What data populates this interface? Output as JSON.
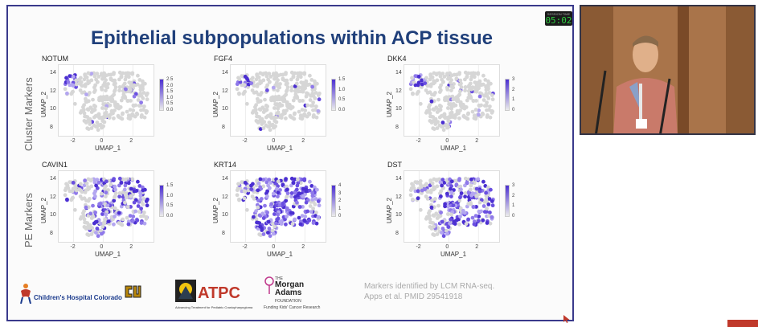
{
  "slide": {
    "title": "Epithelial subpopulations within ACP tissue",
    "timer": {
      "label": "SESSION TIME",
      "value": "05:02"
    },
    "row_labels": [
      "Cluster Markers",
      "PE Markers"
    ],
    "logos": {
      "childrens": "Children's Hospital Colorado",
      "atpc": "ATPC",
      "atpc_sub": "Advancing Treatment for Pediatric Craniopharyngioma",
      "morgan_the": "THE",
      "morgan_name": "Morgan Adams",
      "morgan_foundation": "FOUNDATION",
      "morgan_tagline": "Funding Kids' Cancer Research"
    },
    "footnote": [
      "Markers identified by LCM RNA-seq.",
      "Apps et al. PMID 29541918"
    ]
  },
  "chart_data": [
    {
      "type": "scatter",
      "title": "NOTUM",
      "xlabel": "UMAP_1",
      "ylabel": "UMAP_2",
      "xticks": [
        "-2",
        "0",
        "2"
      ],
      "yticks": [
        "14",
        "12",
        "10",
        "8"
      ],
      "legend_ticks": [
        "2.5",
        "2.0",
        "1.5",
        "1.0",
        "0.5",
        "0.0"
      ],
      "xlim": [
        -3,
        3.5
      ],
      "ylim": [
        7,
        15
      ],
      "expression": "low"
    },
    {
      "type": "scatter",
      "title": "FGF4",
      "xlabel": "UMAP_1",
      "ylabel": "UMAP_2",
      "xticks": [
        "-2",
        "0",
        "2"
      ],
      "yticks": [
        "14",
        "12",
        "10",
        "8"
      ],
      "legend_ticks": [
        "1.5",
        "1.0",
        "0.5",
        "0.0"
      ],
      "xlim": [
        -3,
        3.5
      ],
      "ylim": [
        7,
        15
      ],
      "expression": "low"
    },
    {
      "type": "scatter",
      "title": "DKK4",
      "xlabel": "UMAP_1",
      "ylabel": "UMAP_2",
      "xticks": [
        "-2",
        "0",
        "2"
      ],
      "yticks": [
        "14",
        "12",
        "10",
        "8"
      ],
      "legend_ticks": [
        "3",
        "2",
        "1",
        "0"
      ],
      "xlim": [
        -3,
        3.5
      ],
      "ylim": [
        7,
        15
      ],
      "expression": "low"
    },
    {
      "type": "scatter",
      "title": "CAVIN1",
      "xlabel": "UMAP_1",
      "ylabel": "UMAP_2",
      "xticks": [
        "-2",
        "0",
        "2"
      ],
      "yticks": [
        "14",
        "12",
        "10",
        "8"
      ],
      "legend_ticks": [
        "1.5",
        "1.0",
        "0.5",
        "0.0"
      ],
      "xlim": [
        -3,
        3.5
      ],
      "ylim": [
        7,
        15
      ],
      "expression": "medium"
    },
    {
      "type": "scatter",
      "title": "KRT14",
      "xlabel": "UMAP_1",
      "ylabel": "UMAP_2",
      "xticks": [
        "-2",
        "0",
        "2"
      ],
      "yticks": [
        "14",
        "12",
        "10",
        "8"
      ],
      "legend_ticks": [
        "4",
        "3",
        "2",
        "1",
        "0"
      ],
      "xlim": [
        -3,
        3.5
      ],
      "ylim": [
        7,
        15
      ],
      "expression": "high"
    },
    {
      "type": "scatter",
      "title": "DST",
      "xlabel": "UMAP_1",
      "ylabel": "UMAP_2",
      "xticks": [
        "-2",
        "0",
        "2"
      ],
      "yticks": [
        "14",
        "12",
        "10",
        "8"
      ],
      "legend_ticks": [
        "3",
        "2",
        "1",
        "0"
      ],
      "xlim": [
        -3,
        3.5
      ],
      "ylim": [
        7,
        15
      ],
      "expression": "medium"
    }
  ],
  "colors": {
    "title": "#1f3f7a",
    "high": "#4b2fd1",
    "low": "#d6d6d6",
    "border": "#3a3a8c"
  }
}
